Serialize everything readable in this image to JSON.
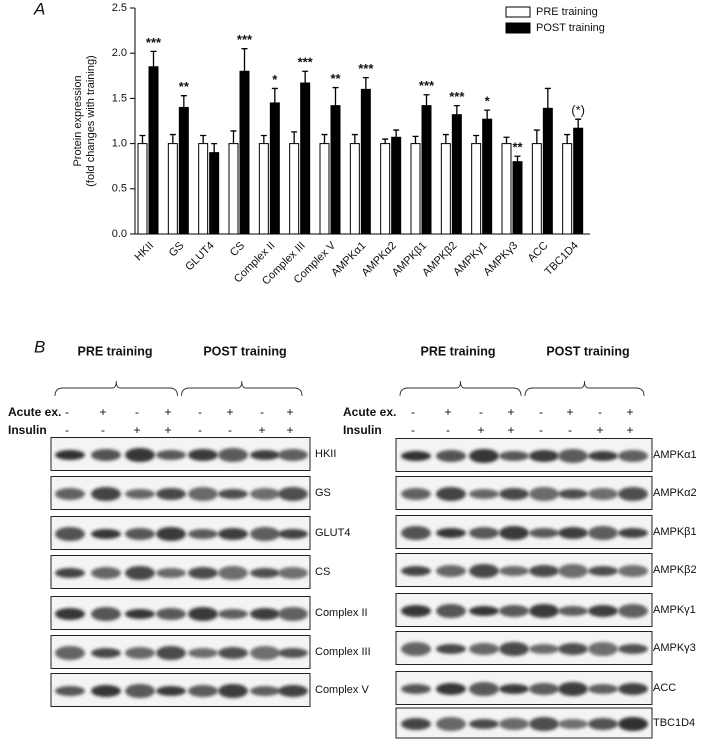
{
  "chart_data": {
    "type": "bar",
    "panel_label": "A",
    "y_label": [
      "Protein expression",
      "(fold changes with training)"
    ],
    "categories": [
      "HKII",
      "GS",
      "GLUT4",
      "CS",
      "Complex II",
      "Complex III",
      "Complex V",
      "AMPKα1",
      "AMPKα2",
      "AMPKβ1",
      "AMPKβ2",
      "AMPKγ1",
      "AMPKγ3",
      "ACC",
      "TBC1D4"
    ],
    "series": [
      {
        "name": "PRE training",
        "color": "#ffffff",
        "values": [
          1.0,
          1.0,
          1.0,
          1.0,
          1.0,
          1.0,
          1.0,
          1.0,
          1.0,
          1.0,
          1.0,
          1.0,
          1.0,
          1.0,
          1.0
        ],
        "errors": [
          0.09,
          0.1,
          0.09,
          0.14,
          0.09,
          0.13,
          0.1,
          0.1,
          0.05,
          0.08,
          0.1,
          0.09,
          0.07,
          0.15,
          0.1
        ]
      },
      {
        "name": "POST training",
        "color": "#000000",
        "values": [
          1.85,
          1.4,
          0.9,
          1.8,
          1.45,
          1.67,
          1.42,
          1.6,
          1.07,
          1.42,
          1.32,
          1.27,
          0.8,
          1.39,
          1.17
        ],
        "errors": [
          0.17,
          0.13,
          0.1,
          0.25,
          0.16,
          0.13,
          0.2,
          0.13,
          0.08,
          0.12,
          0.1,
          0.1,
          0.06,
          0.22,
          0.1
        ]
      }
    ],
    "annotations": [
      "***",
      "**",
      null,
      "***",
      "*",
      "***",
      "**",
      "***",
      null,
      "***",
      "***",
      "*",
      "**",
      null,
      "(*)"
    ],
    "ylim": [
      0,
      2.5
    ],
    "yticks": [
      {
        "value": 0,
        "label": "0.0"
      },
      0.5,
      {
        "value": 1,
        "label": "1.0"
      },
      1.5,
      {
        "value": 2,
        "label": "2.0"
      },
      2.5
    ],
    "legend": "upper right",
    "grid": false
  },
  "blots": {
    "panel_label": "B",
    "group_labels": [
      "PRE training",
      "POST training"
    ],
    "conditions": [
      {
        "label": "Acute ex.",
        "signs": [
          "-",
          "+",
          "-",
          "+",
          "-",
          "+",
          "-",
          "+"
        ]
      },
      {
        "label": "Insulin",
        "signs": [
          "-",
          "-",
          "+",
          "+",
          "-",
          "-",
          "+",
          "+"
        ]
      }
    ],
    "left_blots": [
      "HKII",
      "GS",
      "GLUT4",
      "CS",
      "Complex II",
      "Complex III",
      "Complex V"
    ],
    "right_blots": [
      "AMPKα1",
      "AMPKα2",
      "AMPKβ1",
      "AMPKβ2",
      "AMPKγ1",
      "AMPKγ3",
      "ACC",
      "TBC1D4"
    ]
  }
}
